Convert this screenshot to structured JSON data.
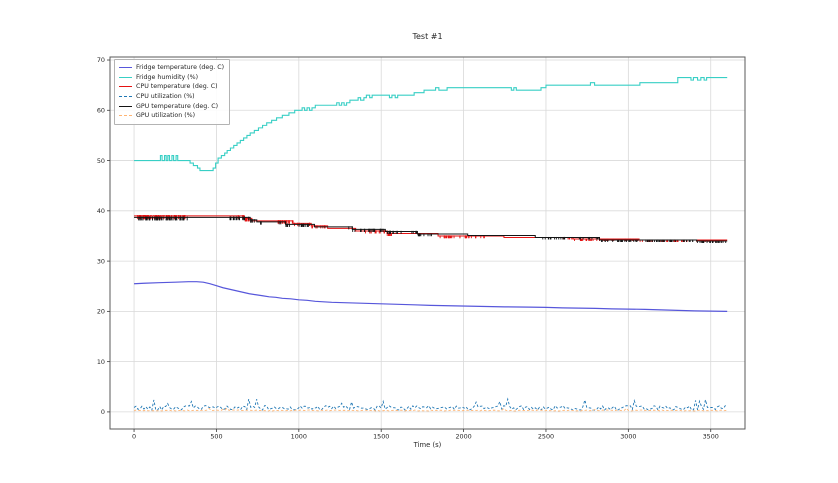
{
  "figure": {
    "background": "#ffffff",
    "grid_color": "#d9d9d9",
    "spine_color": "#5a5a5a",
    "tick_color": "#3a3a3a",
    "text_color": "#262626"
  },
  "chart_data": {
    "type": "line",
    "title": "Test #1",
    "xlabel": "Time (s)",
    "ylabel": "",
    "x_ticks": [
      0,
      500,
      1000,
      1500,
      2000,
      2500,
      3000,
      3500
    ],
    "y_ticks": [
      0,
      10,
      20,
      30,
      40,
      50,
      60,
      70
    ],
    "xlim": [
      -146,
      3708
    ],
    "ylim": [
      -3.4,
      70.6
    ],
    "grid": true,
    "legend_position": "upper-left",
    "series": [
      {
        "name": "Fridge temperature (deg. C)",
        "color": "#5757db",
        "line_style": "solid",
        "interpolation": "linear",
        "line_width": 1.2,
        "points": [
          [
            0,
            25.5
          ],
          [
            60,
            25.6
          ],
          [
            150,
            25.7
          ],
          [
            250,
            25.8
          ],
          [
            330,
            25.9
          ],
          [
            380,
            25.9
          ],
          [
            420,
            25.8
          ],
          [
            460,
            25.5
          ],
          [
            500,
            25.1
          ],
          [
            540,
            24.7
          ],
          [
            580,
            24.4
          ],
          [
            620,
            24.1
          ],
          [
            660,
            23.8
          ],
          [
            700,
            23.5
          ],
          [
            740,
            23.3
          ],
          [
            780,
            23.1
          ],
          [
            820,
            22.9
          ],
          [
            860,
            22.8
          ],
          [
            900,
            22.6
          ],
          [
            950,
            22.5
          ],
          [
            1000,
            22.3
          ],
          [
            1050,
            22.2
          ],
          [
            1100,
            22.0
          ],
          [
            1150,
            21.9
          ],
          [
            1200,
            21.8
          ],
          [
            1300,
            21.7
          ],
          [
            1400,
            21.6
          ],
          [
            1500,
            21.5
          ],
          [
            1600,
            21.4
          ],
          [
            1700,
            21.3
          ],
          [
            1800,
            21.2
          ],
          [
            1950,
            21.1
          ],
          [
            2100,
            21.0
          ],
          [
            2250,
            20.9
          ],
          [
            2400,
            20.85
          ],
          [
            2500,
            20.8
          ],
          [
            2600,
            20.7
          ],
          [
            2700,
            20.65
          ],
          [
            2800,
            20.6
          ],
          [
            2900,
            20.5
          ],
          [
            3000,
            20.45
          ],
          [
            3100,
            20.4
          ],
          [
            3200,
            20.3
          ],
          [
            3300,
            20.2
          ],
          [
            3400,
            20.1
          ],
          [
            3500,
            20.05
          ],
          [
            3600,
            20.0
          ]
        ]
      },
      {
        "name": "Fridge humidity (%)",
        "color": "#38cfc5",
        "line_style": "solid",
        "interpolation": "step",
        "line_width": 1.1,
        "points": [
          [
            0,
            50
          ],
          [
            150,
            50
          ],
          [
            160,
            51
          ],
          [
            170,
            50
          ],
          [
            185,
            51
          ],
          [
            195,
            50
          ],
          [
            205,
            51
          ],
          [
            215,
            50
          ],
          [
            230,
            51
          ],
          [
            240,
            50
          ],
          [
            255,
            51
          ],
          [
            265,
            50
          ],
          [
            340,
            49.5
          ],
          [
            360,
            49
          ],
          [
            385,
            48.5
          ],
          [
            400,
            48
          ],
          [
            465,
            48
          ],
          [
            480,
            48.5
          ],
          [
            495,
            49.5
          ],
          [
            510,
            50.5
          ],
          [
            530,
            51
          ],
          [
            550,
            51.5
          ],
          [
            565,
            52
          ],
          [
            585,
            52.5
          ],
          [
            605,
            53
          ],
          [
            625,
            53.5
          ],
          [
            645,
            54
          ],
          [
            665,
            54.5
          ],
          [
            685,
            55
          ],
          [
            705,
            55.5
          ],
          [
            730,
            56
          ],
          [
            755,
            56.5
          ],
          [
            780,
            57
          ],
          [
            805,
            57.5
          ],
          [
            835,
            58
          ],
          [
            865,
            58.5
          ],
          [
            900,
            59
          ],
          [
            940,
            59.5
          ],
          [
            975,
            60
          ],
          [
            1020,
            60.5
          ],
          [
            1035,
            60
          ],
          [
            1050,
            60.5
          ],
          [
            1065,
            60
          ],
          [
            1080,
            60.5
          ],
          [
            1100,
            61
          ],
          [
            1230,
            61.5
          ],
          [
            1245,
            61
          ],
          [
            1260,
            61.5
          ],
          [
            1275,
            61
          ],
          [
            1290,
            61.5
          ],
          [
            1310,
            62
          ],
          [
            1360,
            62.5
          ],
          [
            1375,
            62
          ],
          [
            1395,
            62.5
          ],
          [
            1410,
            63
          ],
          [
            1430,
            62.5
          ],
          [
            1445,
            63
          ],
          [
            1550,
            62.5
          ],
          [
            1565,
            63
          ],
          [
            1585,
            62.5
          ],
          [
            1600,
            63
          ],
          [
            1700,
            63.5
          ],
          [
            1760,
            64
          ],
          [
            1830,
            64.5
          ],
          [
            1850,
            64
          ],
          [
            1900,
            64.5
          ],
          [
            2290,
            64
          ],
          [
            2305,
            64.5
          ],
          [
            2320,
            64
          ],
          [
            2470,
            64.5
          ],
          [
            2500,
            65
          ],
          [
            2770,
            65.5
          ],
          [
            2795,
            65
          ],
          [
            3070,
            65.5
          ],
          [
            3300,
            66.5
          ],
          [
            3380,
            66
          ],
          [
            3395,
            66.5
          ],
          [
            3420,
            66
          ],
          [
            3440,
            66.5
          ],
          [
            3460,
            66
          ],
          [
            3475,
            66.5
          ],
          [
            3600,
            66.5
          ]
        ]
      },
      {
        "name": "CPU temperature (deg. C)",
        "color": "#e51212",
        "line_style": "solid",
        "interpolation": "step",
        "line_width": 1.0,
        "points": [
          [
            0,
            39
          ],
          [
            660,
            39
          ],
          [
            670,
            38.5
          ],
          [
            705,
            38.5
          ],
          [
            715,
            38
          ],
          [
            950,
            38
          ],
          [
            965,
            37.5
          ],
          [
            1060,
            37.5
          ],
          [
            1075,
            37
          ],
          [
            1160,
            37
          ],
          [
            1175,
            36.5
          ],
          [
            1330,
            36.5
          ],
          [
            1345,
            36
          ],
          [
            1520,
            36
          ],
          [
            1535,
            35.5
          ],
          [
            1830,
            35.5
          ],
          [
            1845,
            35
          ],
          [
            2230,
            35
          ],
          [
            2245,
            34.7
          ],
          [
            2650,
            34.7
          ],
          [
            2665,
            34.4
          ],
          [
            3050,
            34.4
          ],
          [
            3065,
            34.2
          ],
          [
            3600,
            34.2
          ]
        ],
        "noise_ticks": [
          {
            "t0": 20,
            "t1": 320,
            "amp": 0.65,
            "n": 60,
            "seed": 101
          },
          {
            "t0": 620,
            "t1": 700,
            "amp": 0.6,
            "n": 14,
            "seed": 102
          },
          {
            "t0": 870,
            "t1": 1010,
            "amp": 0.55,
            "n": 18,
            "seed": 103
          },
          {
            "t0": 1060,
            "t1": 1160,
            "amp": 0.5,
            "n": 10,
            "seed": 104
          },
          {
            "t0": 1380,
            "t1": 1565,
            "amp": 0.5,
            "n": 22,
            "seed": 105
          },
          {
            "t0": 1850,
            "t1": 2130,
            "amp": 0.45,
            "n": 30,
            "seed": 106
          },
          {
            "t0": 2600,
            "t1": 3360,
            "amp": 0.4,
            "n": 72,
            "seed": 107
          },
          {
            "t0": 3400,
            "t1": 3560,
            "amp": 0.35,
            "n": 12,
            "seed": 108
          }
        ]
      },
      {
        "name": "CPU utilization (%)",
        "color": "#1f77b4",
        "line_style": "dashed",
        "interpolation": "linear",
        "line_width": 0.9,
        "generator": {
          "base": 0.8,
          "amplitude": 0.45,
          "spike_probability": 0.06,
          "spike_min": 1.6,
          "spike_max": 2.9,
          "min": 0.05,
          "interval_s": 12,
          "t_start": 0,
          "t_end": 3600,
          "seed": 42
        }
      },
      {
        "name": "GPU temperature (deg. C)",
        "color": "#141414",
        "line_style": "solid",
        "interpolation": "step",
        "line_width": 1.0,
        "points": [
          [
            0,
            38.7
          ],
          [
            690,
            38.7
          ],
          [
            705,
            38.2
          ],
          [
            730,
            38.2
          ],
          [
            745,
            37.8
          ],
          [
            905,
            37.8
          ],
          [
            920,
            37.3
          ],
          [
            1080,
            37.3
          ],
          [
            1095,
            36.8
          ],
          [
            1310,
            36.8
          ],
          [
            1325,
            36.3
          ],
          [
            1510,
            36.3
          ],
          [
            1525,
            35.9
          ],
          [
            1705,
            35.9
          ],
          [
            1720,
            35.4
          ],
          [
            2010,
            35.4
          ],
          [
            2025,
            35.1
          ],
          [
            2420,
            35.1
          ],
          [
            2435,
            34.7
          ],
          [
            2810,
            34.7
          ],
          [
            2825,
            34.2
          ],
          [
            3400,
            34.2
          ],
          [
            3415,
            34.0
          ],
          [
            3600,
            34.0
          ]
        ],
        "noise_ticks": [
          {
            "t0": 20,
            "t1": 330,
            "amp": 0.6,
            "n": 55,
            "seed": 201
          },
          {
            "t0": 560,
            "t1": 780,
            "amp": 0.55,
            "n": 25,
            "seed": 202
          },
          {
            "t0": 880,
            "t1": 1060,
            "amp": 0.5,
            "n": 20,
            "seed": 203
          },
          {
            "t0": 1300,
            "t1": 1630,
            "amp": 0.5,
            "n": 35,
            "seed": 204
          },
          {
            "t0": 1650,
            "t1": 1810,
            "amp": 0.45,
            "n": 15,
            "seed": 205
          },
          {
            "t0": 2450,
            "t1": 2620,
            "amp": 0.4,
            "n": 15,
            "seed": 206
          },
          {
            "t0": 2700,
            "t1": 3600,
            "amp": 0.4,
            "n": 90,
            "seed": 207
          }
        ]
      },
      {
        "name": "GPU utilization (%)",
        "color": "#ffb472",
        "line_style": "dashed",
        "interpolation": "linear",
        "line_width": 0.9,
        "generator": {
          "base": 0.28,
          "amplitude": 0.1,
          "spike_probability": 0.015,
          "spike_min": 0.5,
          "spike_max": 0.9,
          "min": 0.05,
          "interval_s": 12,
          "t_start": 0,
          "t_end": 3600,
          "seed": 7
        }
      }
    ]
  }
}
